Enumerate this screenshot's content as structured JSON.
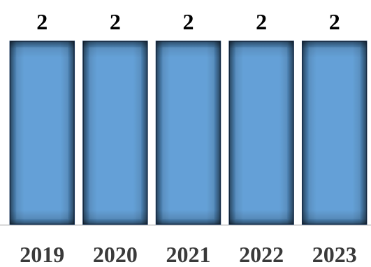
{
  "chart_data": {
    "type": "bar",
    "categories": [
      "2019",
      "2020",
      "2021",
      "2022",
      "2023"
    ],
    "values": [
      2,
      2,
      2,
      2,
      2
    ],
    "title": "",
    "xlabel": "",
    "ylabel": "",
    "ylim": [
      0,
      2
    ],
    "grid": false,
    "legend": "none",
    "bar_color": "#5b9bd5",
    "bar_edge_color": "#1f3f66",
    "baseline_color": "#d9d9d9"
  }
}
